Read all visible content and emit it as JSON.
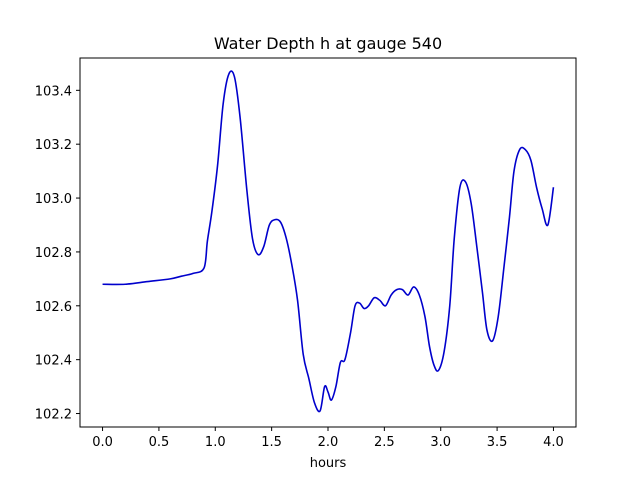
{
  "chart_data": {
    "type": "line",
    "title": "Water Depth h at gauge 540",
    "xlabel": "hours",
    "ylabel": "",
    "xlim": [
      -0.2,
      4.2
    ],
    "ylim": [
      102.15,
      103.52
    ],
    "xticks": [
      0.0,
      0.5,
      1.0,
      1.5,
      2.0,
      2.5,
      3.0,
      3.5,
      4.0
    ],
    "xtick_labels": [
      "0.0",
      "0.5",
      "1.0",
      "1.5",
      "2.0",
      "2.5",
      "3.0",
      "3.5",
      "4.0"
    ],
    "yticks": [
      102.2,
      102.4,
      102.6,
      102.8,
      103.0,
      103.2,
      103.4
    ],
    "ytick_labels": [
      "102.2",
      "102.4",
      "102.6",
      "102.8",
      "103.0",
      "103.2",
      "103.4"
    ],
    "grid": false,
    "series": [
      {
        "color": "#0000cc",
        "x": [
          0.0,
          0.2,
          0.4,
          0.6,
          0.7,
          0.8,
          0.9,
          0.93,
          0.97,
          1.02,
          1.07,
          1.12,
          1.17,
          1.22,
          1.28,
          1.33,
          1.38,
          1.43,
          1.48,
          1.53,
          1.58,
          1.63,
          1.68,
          1.73,
          1.78,
          1.83,
          1.88,
          1.93,
          1.97,
          2.0,
          2.03,
          2.07,
          2.11,
          2.15,
          2.2,
          2.24,
          2.28,
          2.32,
          2.36,
          2.41,
          2.46,
          2.51,
          2.56,
          2.61,
          2.66,
          2.71,
          2.76,
          2.81,
          2.86,
          2.9,
          2.94,
          2.98,
          3.03,
          3.08,
          3.12,
          3.17,
          3.22,
          3.27,
          3.32,
          3.37,
          3.41,
          3.46,
          3.51,
          3.56,
          3.61,
          3.65,
          3.7,
          3.75,
          3.8,
          3.85,
          3.9,
          3.95,
          4.0
        ],
        "y": [
          102.68,
          102.68,
          102.69,
          102.7,
          102.71,
          102.72,
          102.74,
          102.84,
          102.95,
          103.12,
          103.35,
          103.46,
          103.45,
          103.3,
          103.03,
          102.85,
          102.79,
          102.82,
          102.9,
          102.92,
          102.91,
          102.85,
          102.75,
          102.62,
          102.42,
          102.33,
          102.24,
          102.21,
          102.3,
          102.28,
          102.25,
          102.3,
          102.39,
          102.4,
          102.5,
          102.6,
          102.61,
          102.59,
          102.6,
          102.63,
          102.62,
          102.6,
          102.64,
          102.66,
          102.66,
          102.64,
          102.67,
          102.64,
          102.56,
          102.45,
          102.38,
          102.36,
          102.43,
          102.6,
          102.85,
          103.04,
          103.06,
          102.98,
          102.82,
          102.65,
          102.51,
          102.47,
          102.56,
          102.74,
          102.93,
          103.1,
          103.18,
          103.18,
          103.14,
          103.04,
          102.96,
          102.9,
          103.04
        ]
      }
    ]
  }
}
